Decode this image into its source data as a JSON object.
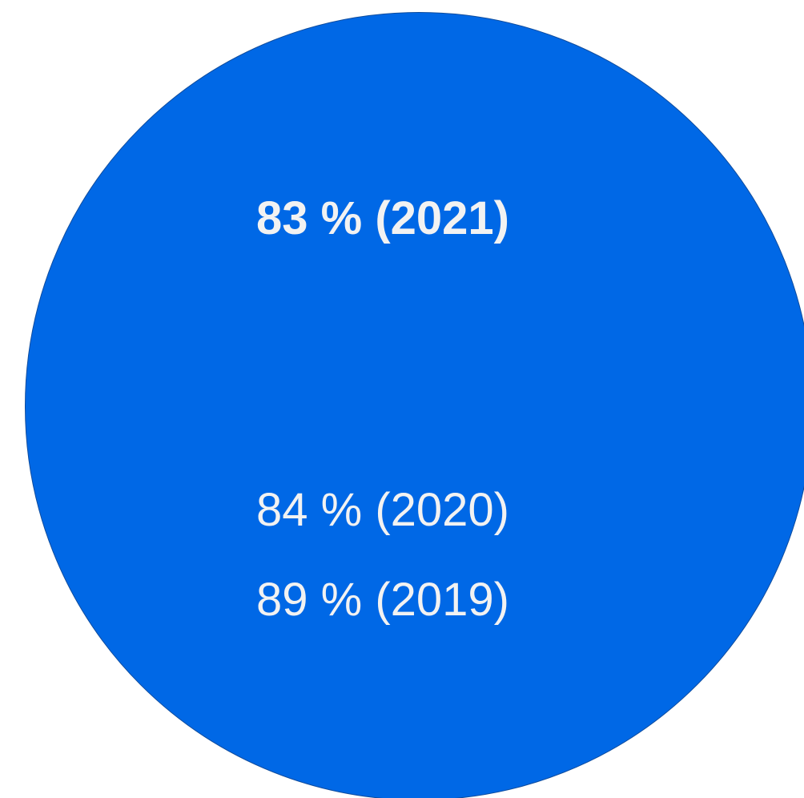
{
  "colors": {
    "circle_fill": "#0068e6",
    "circle_border": "#0d4c9e",
    "text": "#f2f2f2",
    "background": "#ffffff"
  },
  "stats": {
    "current": "83 % (2021)",
    "previous": [
      "84 % (2020)",
      "89 % (2019)"
    ]
  }
}
